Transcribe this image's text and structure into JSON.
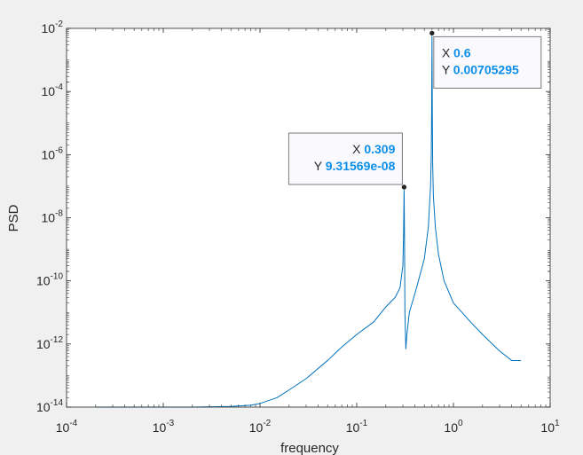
{
  "chart_data": {
    "type": "line",
    "xlabel": "frequency",
    "ylabel": "PSD",
    "xscale": "log",
    "yscale": "log",
    "xlim": [
      0.0001,
      10
    ],
    "ylim": [
      1e-14,
      0.01
    ],
    "x_ticks": [
      {
        "base": "10",
        "exp": "-4"
      },
      {
        "base": "10",
        "exp": "-3"
      },
      {
        "base": "10",
        "exp": "-2"
      },
      {
        "base": "10",
        "exp": "-1"
      },
      {
        "base": "10",
        "exp": "0"
      },
      {
        "base": "10",
        "exp": "1"
      }
    ],
    "y_ticks": [
      {
        "base": "10",
        "exp": "-14"
      },
      {
        "base": "10",
        "exp": "-12"
      },
      {
        "base": "10",
        "exp": "-10"
      },
      {
        "base": "10",
        "exp": "-8"
      },
      {
        "base": "10",
        "exp": "-6"
      },
      {
        "base": "10",
        "exp": "-4"
      },
      {
        "base": "10",
        "exp": "-2"
      }
    ],
    "grid": false,
    "series": [
      {
        "color": "#0072bd",
        "x": [
          0.0002,
          0.0005,
          0.001,
          0.002,
          0.005,
          0.008,
          0.01,
          0.015,
          0.02,
          0.03,
          0.05,
          0.07,
          0.1,
          0.15,
          0.2,
          0.25,
          0.28,
          0.3,
          0.305,
          0.309,
          0.312,
          0.315,
          0.318,
          0.322,
          0.33,
          0.35,
          0.4,
          0.45,
          0.5,
          0.55,
          0.58,
          0.59,
          0.595,
          0.6,
          0.605,
          0.61,
          0.62,
          0.65,
          0.7,
          0.8,
          1.0,
          1.5,
          2.0,
          3.0,
          4.0,
          5.0
        ],
        "y": [
          1e-14,
          1e-14,
          1e-14,
          1e-14,
          1.05e-14,
          1.15e-14,
          1.3e-14,
          2e-14,
          3.5e-14,
          8e-14,
          3e-13,
          8e-13,
          2e-12,
          5e-12,
          1.5e-11,
          3e-11,
          6e-11,
          3e-10,
          3e-09,
          9.31569e-08,
          2e-09,
          1e-11,
          3e-12,
          7e-13,
          2e-12,
          1e-11,
          4e-11,
          1.5e-10,
          5e-10,
          5e-09,
          1e-07,
          1e-06,
          2e-05,
          0.00705295,
          2e-05,
          5e-07,
          5e-08,
          5e-09,
          7e-10,
          1e-10,
          2e-11,
          5e-12,
          2e-12,
          6e-13,
          3e-13,
          3e-13
        ]
      }
    ],
    "annotations": [
      {
        "x_key": "X",
        "y_key": "Y",
        "x_value": "0.6",
        "y_value": "0.00705295",
        "px": 0.6,
        "py": 0.00705295,
        "align": "left"
      },
      {
        "x_key": "X",
        "y_key": "Y",
        "x_value": "0.309",
        "y_value": "9.31569e-08",
        "px": 0.309,
        "py": 9.31569e-08,
        "align": "right"
      }
    ]
  }
}
